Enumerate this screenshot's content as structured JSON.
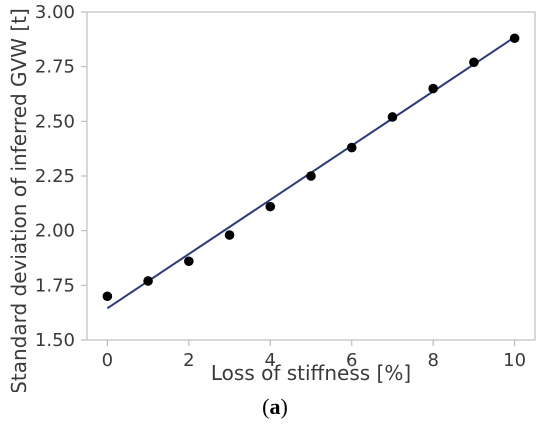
{
  "chart_data": {
    "type": "scatter",
    "xlabel": "Loss of stiffness [%]",
    "ylabel": "Standard deviation of inferred GVW [t]",
    "xlim": [
      -0.5,
      10.5
    ],
    "ylim": [
      1.5,
      3.0
    ],
    "x_ticks": [
      0,
      2,
      4,
      6,
      8,
      10
    ],
    "x_tick_labels": [
      "0",
      "2",
      "4",
      "6",
      "8",
      "10"
    ],
    "y_ticks": [
      1.5,
      1.75,
      2.0,
      2.25,
      2.5,
      2.75,
      3.0
    ],
    "y_tick_labels": [
      "1.50",
      "1.75",
      "2.00",
      "2.25",
      "2.50",
      "2.75",
      "3.00"
    ],
    "grid": false,
    "series": [
      {
        "type": "scatter",
        "x": [
          0,
          1,
          2,
          3,
          4,
          5,
          6,
          7,
          8,
          9,
          10
        ],
        "y": [
          1.7,
          1.77,
          1.86,
          1.98,
          2.11,
          2.25,
          2.38,
          2.52,
          2.65,
          2.77,
          2.88
        ]
      },
      {
        "type": "line",
        "x": [
          0,
          10
        ],
        "y": [
          1.645,
          2.885
        ]
      }
    ],
    "colors": {
      "points": "#000000",
      "fit_line": "#2d3a7a",
      "axis": "#bdbdbd",
      "text": "#3a3a3a"
    }
  },
  "caption": {
    "open": "(",
    "letter": "a",
    "close": ")"
  }
}
